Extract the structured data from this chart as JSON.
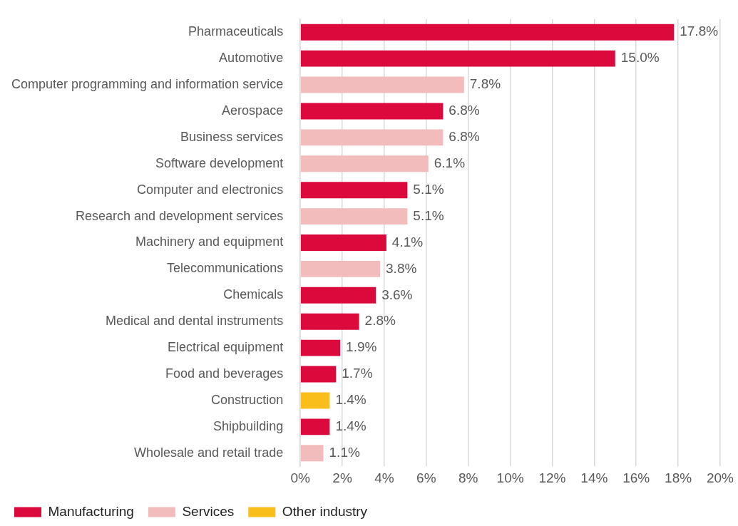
{
  "chart_data": {
    "type": "bar",
    "orientation": "horizontal",
    "stacked": true,
    "categories": [
      "Pharmaceuticals",
      "Automotive",
      "Computer programming and information service",
      "Aerospace",
      "Business services",
      "Software development",
      "Computer and electronics",
      "Research and development services",
      "Machinery and equipment",
      "Telecommunications",
      "Chemicals",
      "Medical and dental instruments",
      "Electrical equipment",
      "Food and beverages",
      "Construction",
      "Shipbuilding",
      "Wholesale and retail trade"
    ],
    "series": [
      {
        "name": "Manufacturing",
        "color": "#dc0a3c",
        "values": [
          17.8,
          15.0,
          null,
          6.8,
          null,
          null,
          5.1,
          null,
          4.1,
          null,
          3.6,
          2.8,
          1.9,
          1.7,
          null,
          1.4,
          null
        ],
        "value_labels": [
          "17.8%",
          "15.0%",
          null,
          "6.8%",
          null,
          null,
          "5.1%",
          null,
          "4.1%",
          null,
          "3.6%",
          "2.8%",
          "1.9%",
          "1.7%",
          null,
          "1.4%",
          null
        ]
      },
      {
        "name": "Services",
        "color": "#f2bcbc",
        "values": [
          null,
          null,
          7.8,
          null,
          6.8,
          6.1,
          null,
          5.1,
          null,
          3.8,
          null,
          null,
          null,
          null,
          null,
          null,
          1.1
        ],
        "value_labels": [
          null,
          null,
          "7.8%",
          null,
          "6.8%",
          "6.1%",
          null,
          "5.1%",
          null,
          "3.8%",
          null,
          null,
          null,
          null,
          null,
          null,
          "1.1%"
        ]
      },
      {
        "name": "Other industry",
        "color": "#f9be1a",
        "values": [
          null,
          null,
          null,
          null,
          null,
          null,
          null,
          null,
          null,
          null,
          null,
          null,
          null,
          null,
          1.4,
          null,
          null
        ],
        "value_labels": [
          null,
          null,
          null,
          null,
          null,
          null,
          null,
          null,
          null,
          null,
          null,
          null,
          null,
          null,
          "1.4%",
          null,
          null
        ]
      }
    ],
    "xlim": [
      0,
      20
    ],
    "xticks": [
      {
        "value": 0,
        "label": "0%"
      },
      {
        "value": 2,
        "label": "2%"
      },
      {
        "value": 4,
        "label": "4%"
      },
      {
        "value": 6,
        "label": "6%"
      },
      {
        "value": 8,
        "label": "8%"
      },
      {
        "value": 10,
        "label": "10%"
      },
      {
        "value": 12,
        "label": "12%"
      },
      {
        "value": 14,
        "label": "14%"
      },
      {
        "value": 16,
        "label": "16%"
      },
      {
        "value": 18,
        "label": "18%"
      },
      {
        "value": 20,
        "label": "20%"
      }
    ],
    "grid": "x",
    "legend": "bottom left"
  }
}
